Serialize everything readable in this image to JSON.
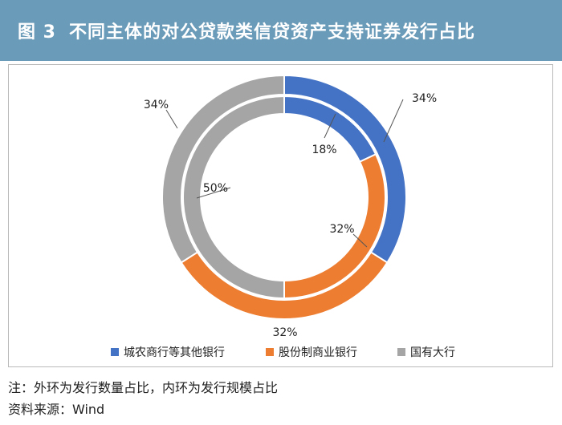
{
  "header": {
    "fig_no": "图 3",
    "title": "不同主体的对公贷款类信贷资产支持证券发行占比"
  },
  "colors": {
    "header_bg": "#6a9bb8",
    "series": [
      "#4472c4",
      "#ed7d31",
      "#a5a5a5"
    ]
  },
  "chart_data": {
    "type": "pie",
    "subtype": "double-donut",
    "title": "不同主体的对公贷款类信贷资产支持证券发行占比",
    "categories": [
      "城农商行等其他银行",
      "股份制商业银行",
      "国有大行"
    ],
    "series": [
      {
        "ring": "outer",
        "values": [
          34,
          32,
          34
        ],
        "labels": [
          "34%",
          "32%",
          "34%"
        ]
      },
      {
        "ring": "inner",
        "values": [
          18,
          32,
          50
        ],
        "labels": [
          "18%",
          "32%",
          "50%"
        ]
      }
    ],
    "legend_position": "bottom"
  },
  "notes": {
    "line1": "注：外环为发行数量占比，内环为发行规模占比",
    "line2": "资料来源：Wind"
  }
}
